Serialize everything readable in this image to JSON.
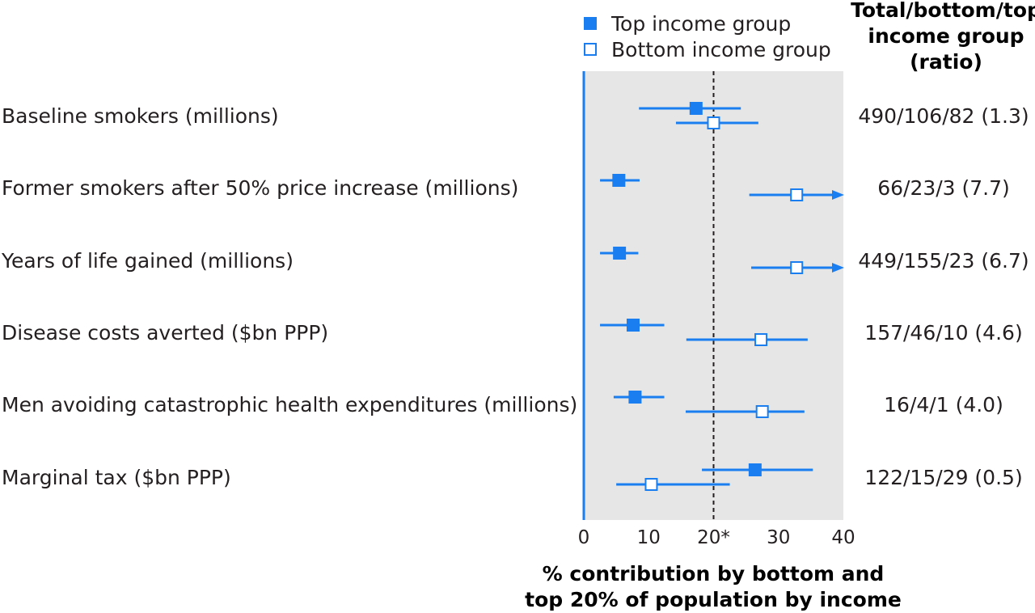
{
  "chart_data": {
    "type": "forest",
    "legend": {
      "placement": "top",
      "entries": [
        {
          "name": "Top income group",
          "marker": "filled-square"
        },
        {
          "name": "Bottom income group",
          "marker": "open-square"
        }
      ]
    },
    "column_header": [
      "Total/bottom/top",
      "income group",
      "(ratio)"
    ],
    "xlabel": [
      "% contribution by bottom and",
      "top 20% of population by income"
    ],
    "xlim": [
      0,
      40
    ],
    "xticks": [
      "0",
      "10",
      "20*",
      "30",
      "40"
    ],
    "xtick_values": [
      0,
      10,
      20,
      30,
      40
    ],
    "reference_line": 20,
    "color": "#1a7ef0",
    "panel_color": "#e6e6e6",
    "rows": [
      {
        "label": "Baseline smokers (millions)",
        "ratio": "490/106/82 (1.3)",
        "top": {
          "value": 17.3,
          "low": 8.5,
          "high": 24.2
        },
        "bottom": {
          "value": 20.0,
          "low": 14.2,
          "high": 26.9
        }
      },
      {
        "label": "Former smokers after 50% price increase (millions)",
        "ratio": "66/23/3 (7.7)",
        "top": {
          "value": 5.4,
          "low": 2.5,
          "high": 8.6
        },
        "bottom": {
          "value": 32.8,
          "low": 25.5,
          "high": 40.0,
          "arrow": true
        }
      },
      {
        "label": "Years of life gained (millions)",
        "ratio": "449/155/23 (6.7)",
        "top": {
          "value": 5.5,
          "low": 2.5,
          "high": 8.4
        },
        "bottom": {
          "value": 32.8,
          "low": 25.8,
          "high": 40.0,
          "arrow": true
        }
      },
      {
        "label": "Disease costs averted ($bn PPP)",
        "ratio": "157/46/10 (4.6)",
        "top": {
          "value": 7.6,
          "low": 2.5,
          "high": 12.4
        },
        "bottom": {
          "value": 27.3,
          "low": 15.8,
          "high": 34.5
        }
      },
      {
        "label": "Men avoiding catastrophic health expenditures (millions)",
        "ratio": "16/4/1 (4.0)",
        "top": {
          "value": 7.9,
          "low": 4.6,
          "high": 12.4
        },
        "bottom": {
          "value": 27.5,
          "low": 15.7,
          "high": 34.0
        }
      },
      {
        "label": "Marginal tax ($bn PPP)",
        "ratio": "122/15/29 (0.5)",
        "top": {
          "value": 26.4,
          "low": 18.2,
          "high": 35.3
        },
        "bottom": {
          "value": 10.4,
          "low": 5.0,
          "high": 22.5
        }
      }
    ]
  }
}
